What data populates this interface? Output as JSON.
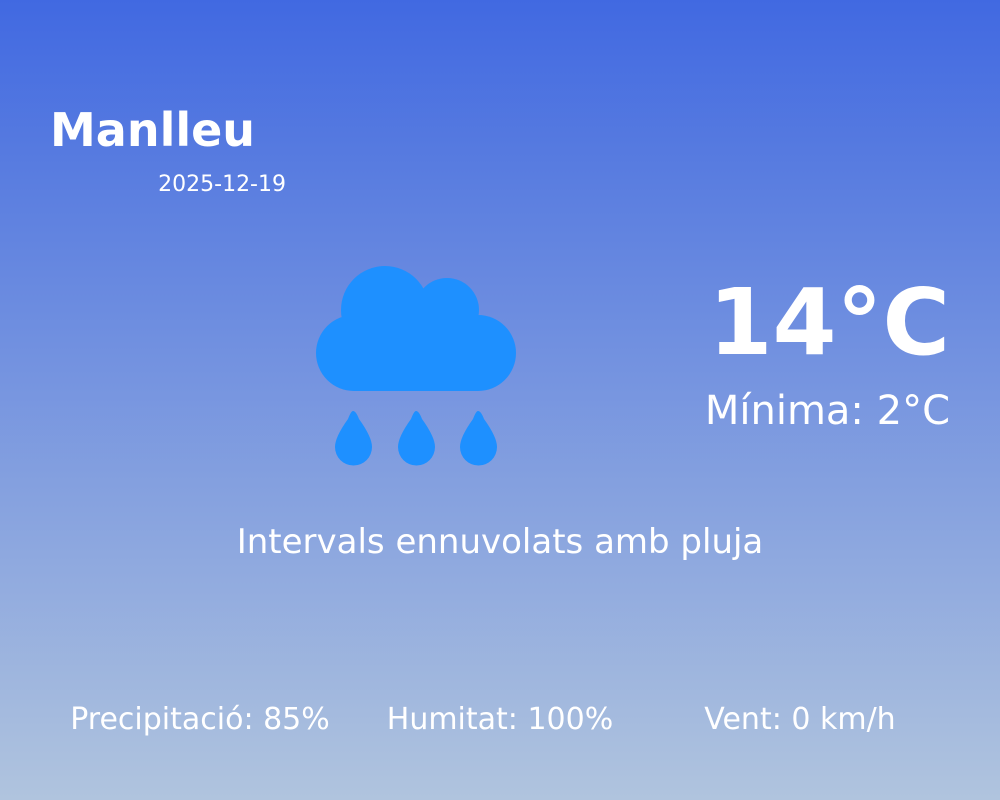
{
  "city": "Manlleu",
  "date": "2025-12-19",
  "icon": "cloud-rain-icon",
  "icon_color": "#1e90ff",
  "temperature": "14°C",
  "minimum": "Mínima: 2°C",
  "description": "Intervals ennuvolats amb pluja",
  "stats": {
    "precipitation": "Precipitació: 85%",
    "humidity": "Humitat: 100%",
    "wind": "Vent: 0 km/h"
  },
  "colors": {
    "gradient_top": "#4169e1",
    "gradient_bottom": "#b0c4de",
    "text": "#ffffff"
  }
}
